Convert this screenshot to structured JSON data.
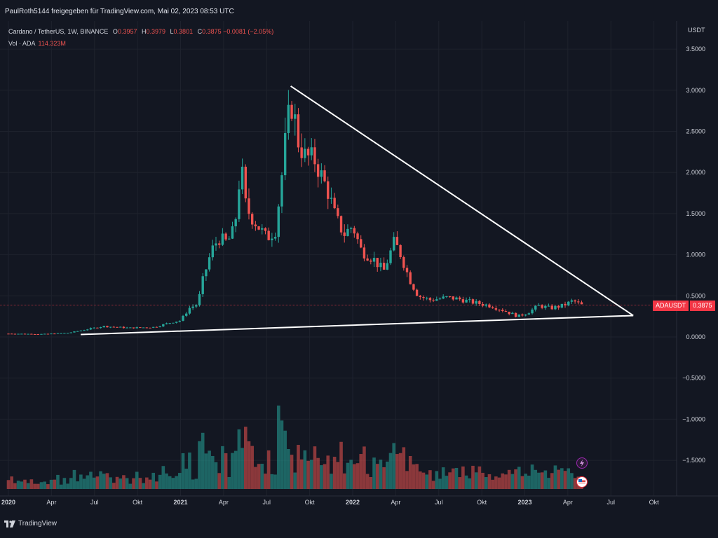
{
  "header": {
    "share_text": "PaulRoth5144 freigegeben für TradingView.com, Mai 02, 2023 08:53 UTC"
  },
  "legend": {
    "symbol": "Cardano / TetherUS, 1W, BINANCE",
    "o_label": "O",
    "o": "0.3957",
    "h_label": "H",
    "h": "0.3979",
    "l_label": "L",
    "l": "0.3801",
    "c_label": "C",
    "c": "0.3875",
    "change": "−0.0081 (−2.05%)",
    "vol_label": "Vol · ADA",
    "vol_value": "114.323M"
  },
  "price_scale": {
    "unit": "USDT",
    "ticks": [
      "3.5000",
      "3.0000",
      "2.5000",
      "2.0000",
      "1.5000",
      "1.0000",
      "0.5000",
      "0.0000",
      "−0.5000",
      "−1.0000",
      "−1.5000"
    ],
    "tick_values": [
      3.5,
      3.0,
      2.5,
      2.0,
      1.5,
      1.0,
      0.5,
      0.0,
      -0.5,
      -1.0,
      -1.5
    ]
  },
  "current_price": {
    "symbol_label": "ADAUSDT",
    "value": "0.3875",
    "price": 0.3875,
    "color": "#f23645"
  },
  "time_axis": {
    "labels": [
      {
        "text": "2020",
        "t": 2020.0,
        "bold": true
      },
      {
        "text": "Apr",
        "t": 2020.25
      },
      {
        "text": "Jul",
        "t": 2020.5
      },
      {
        "text": "Okt",
        "t": 2020.75
      },
      {
        "text": "2021",
        "t": 2021.0,
        "bold": true
      },
      {
        "text": "Apr",
        "t": 2021.25
      },
      {
        "text": "Jul",
        "t": 2021.5
      },
      {
        "text": "Okt",
        "t": 2021.75
      },
      {
        "text": "2022",
        "t": 2022.0,
        "bold": true
      },
      {
        "text": "Apr",
        "t": 2022.25
      },
      {
        "text": "Jul",
        "t": 2022.5
      },
      {
        "text": "Okt",
        "t": 2022.75
      },
      {
        "text": "2023",
        "t": 2023.0,
        "bold": true
      },
      {
        "text": "Apr",
        "t": 2023.25
      },
      {
        "text": "Jul",
        "t": 2023.5
      },
      {
        "text": "Okt",
        "t": 2023.75
      }
    ]
  },
  "brand": {
    "name": "TradingView"
  },
  "colors": {
    "up": "#26a69a",
    "down": "#ef5350",
    "vol_up": "#26a69a",
    "vol_down": "#ef5350",
    "background": "#131722",
    "grid": "#1e222d",
    "line": "#ffffff"
  },
  "chart_data": {
    "type": "candlestick",
    "title": "Cardano / TetherUS, 1W, BINANCE",
    "ylabel": "USDT",
    "ylim": [
      -1.85,
      3.85
    ],
    "xlim": [
      2020.0,
      2023.95
    ],
    "grid": true,
    "anchors": [
      {
        "t": 2020.0,
        "p": 0.04
      },
      {
        "t": 2020.2,
        "p": 0.035
      },
      {
        "t": 2020.35,
        "p": 0.05
      },
      {
        "t": 2020.45,
        "p": 0.09
      },
      {
        "t": 2020.55,
        "p": 0.13
      },
      {
        "t": 2020.7,
        "p": 0.11
      },
      {
        "t": 2020.85,
        "p": 0.12
      },
      {
        "t": 2020.95,
        "p": 0.18
      },
      {
        "t": 2021.0,
        "p": 0.2
      },
      {
        "t": 2021.05,
        "p": 0.35
      },
      {
        "t": 2021.1,
        "p": 0.4
      },
      {
        "t": 2021.13,
        "p": 0.7
      },
      {
        "t": 2021.18,
        "p": 1.05
      },
      {
        "t": 2021.22,
        "p": 1.2
      },
      {
        "t": 2021.27,
        "p": 1.15
      },
      {
        "t": 2021.3,
        "p": 1.25
      },
      {
        "t": 2021.33,
        "p": 1.55
      },
      {
        "t": 2021.35,
        "p": 2.2
      },
      {
        "t": 2021.37,
        "p": 1.65
      },
      {
        "t": 2021.4,
        "p": 1.5
      },
      {
        "t": 2021.45,
        "p": 1.35
      },
      {
        "t": 2021.5,
        "p": 1.2
      },
      {
        "t": 2021.55,
        "p": 1.3
      },
      {
        "t": 2021.58,
        "p": 1.8
      },
      {
        "t": 2021.62,
        "p": 2.6
      },
      {
        "t": 2021.65,
        "p": 2.85
      },
      {
        "t": 2021.68,
        "p": 2.4
      },
      {
        "t": 2021.72,
        "p": 2.2
      },
      {
        "t": 2021.78,
        "p": 2.15
      },
      {
        "t": 2021.82,
        "p": 1.95
      },
      {
        "t": 2021.86,
        "p": 1.75
      },
      {
        "t": 2021.9,
        "p": 1.45
      },
      {
        "t": 2021.95,
        "p": 1.25
      },
      {
        "t": 2022.0,
        "p": 1.35
      },
      {
        "t": 2022.05,
        "p": 1.05
      },
      {
        "t": 2022.12,
        "p": 0.95
      },
      {
        "t": 2022.18,
        "p": 0.8
      },
      {
        "t": 2022.24,
        "p": 1.15
      },
      {
        "t": 2022.27,
        "p": 1.05
      },
      {
        "t": 2022.33,
        "p": 0.7
      },
      {
        "t": 2022.38,
        "p": 0.5
      },
      {
        "t": 2022.45,
        "p": 0.45
      },
      {
        "t": 2022.55,
        "p": 0.48
      },
      {
        "t": 2022.62,
        "p": 0.46
      },
      {
        "t": 2022.7,
        "p": 0.42
      },
      {
        "t": 2022.8,
        "p": 0.38
      },
      {
        "t": 2022.88,
        "p": 0.32
      },
      {
        "t": 2022.96,
        "p": 0.25
      },
      {
        "t": 2023.02,
        "p": 0.3
      },
      {
        "t": 2023.08,
        "p": 0.38
      },
      {
        "t": 2023.15,
        "p": 0.35
      },
      {
        "t": 2023.22,
        "p": 0.38
      },
      {
        "t": 2023.28,
        "p": 0.44
      },
      {
        "t": 2023.33,
        "p": 0.3875
      }
    ],
    "candle_count": 175,
    "trendlines": [
      {
        "name": "upper",
        "from": {
          "t": 2021.64,
          "p": 3.05
        },
        "to": {
          "t": 2023.63,
          "p": 0.26
        }
      },
      {
        "name": "lower",
        "from": {
          "t": 2020.42,
          "p": 0.03
        },
        "to": {
          "t": 2023.63,
          "p": 0.26
        }
      }
    ]
  }
}
